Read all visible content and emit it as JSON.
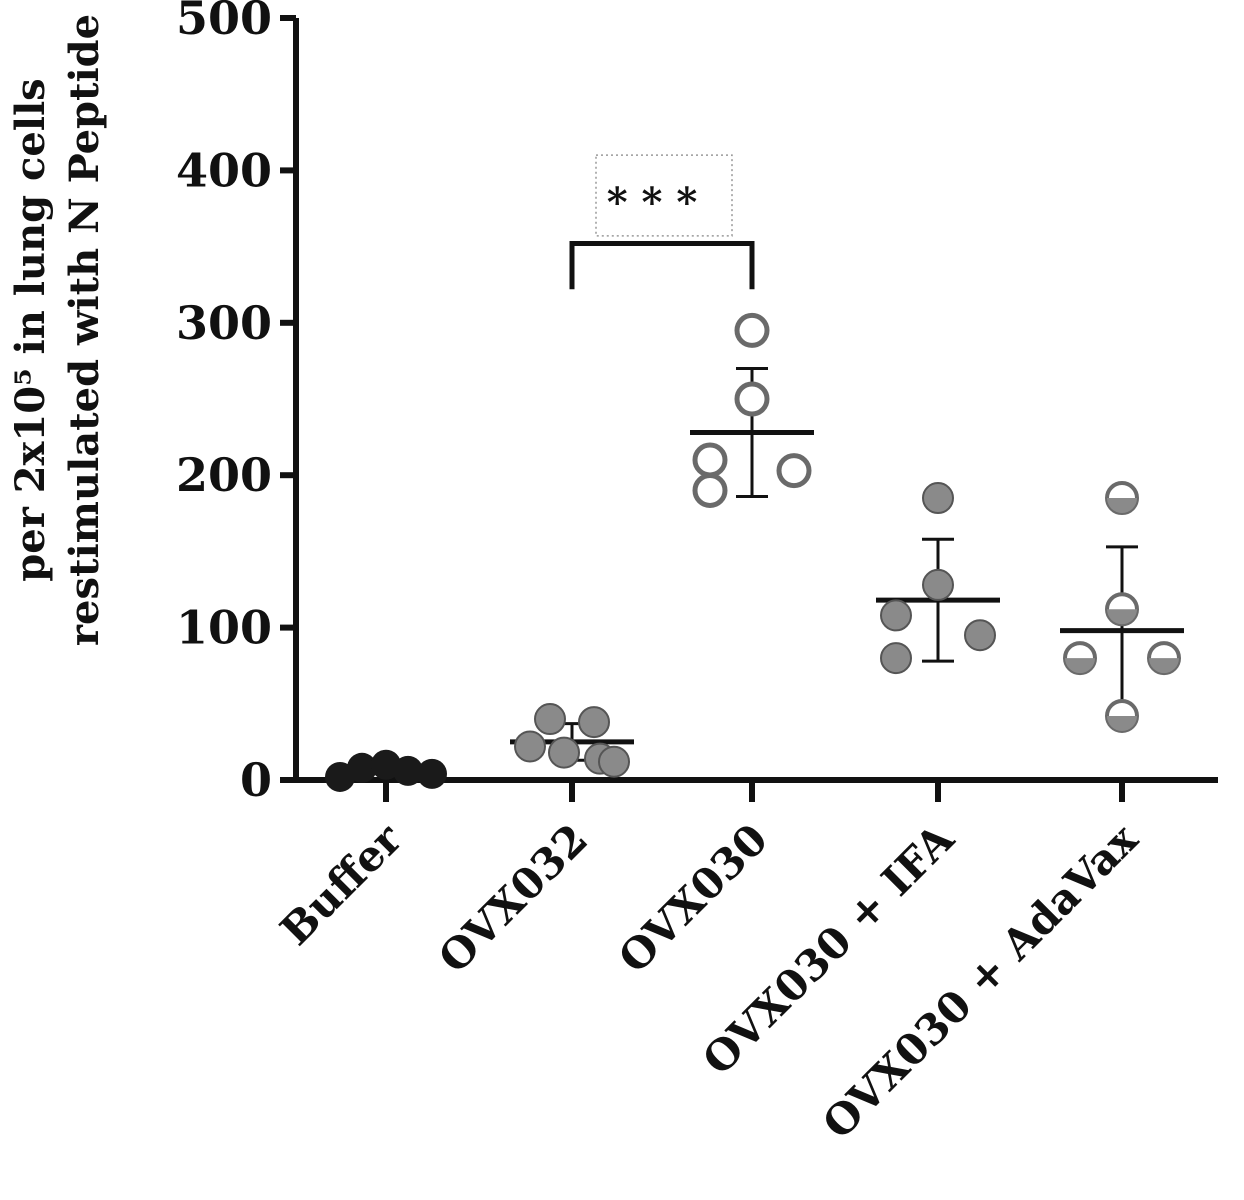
{
  "chart_data": {
    "type": "scatter",
    "ylabel_lines": [
      "per 2x10⁵ in lung cells",
      "restimulated with N Peptide"
    ],
    "xlabel": "",
    "ylim": [
      0,
      500
    ],
    "yticks": [
      0,
      100,
      200,
      300,
      400,
      500
    ],
    "categories": [
      "Buffer",
      "OVX032",
      "OVX030",
      "OVX030 + IFA",
      "OVX030 + AdaVax"
    ],
    "series": [
      {
        "category": "Buffer",
        "marker": "filled-dark",
        "points": [
          2,
          8,
          10,
          6,
          4
        ],
        "mean": 0,
        "sd": 0
      },
      {
        "category": "OVX032",
        "marker": "filled-gray",
        "points": [
          40,
          38,
          22,
          18,
          14,
          12
        ],
        "mean": 25,
        "sd": 12
      },
      {
        "category": "OVX030",
        "marker": "open",
        "points": [
          295,
          250,
          210,
          203,
          190
        ],
        "mean": 228,
        "sd": 42
      },
      {
        "category": "OVX030 + IFA",
        "marker": "filled-gray",
        "points": [
          185,
          128,
          108,
          95,
          80
        ],
        "mean": 118,
        "sd": 40
      },
      {
        "category": "OVX030 + AdaVax",
        "marker": "half-filled",
        "points": [
          185,
          112,
          80,
          80,
          42
        ],
        "mean": 98,
        "sd": 55
      }
    ],
    "annotations": [
      {
        "type": "significance",
        "label": "* * *",
        "from": "OVX032",
        "to": "OVX030"
      }
    ],
    "grid": false,
    "legend": "none"
  },
  "colors": {
    "axis": "#111111",
    "dark_marker": "#1a1a1a",
    "gray_marker": "#8a8a8a",
    "open_marker_stroke": "#6a6a6a"
  }
}
